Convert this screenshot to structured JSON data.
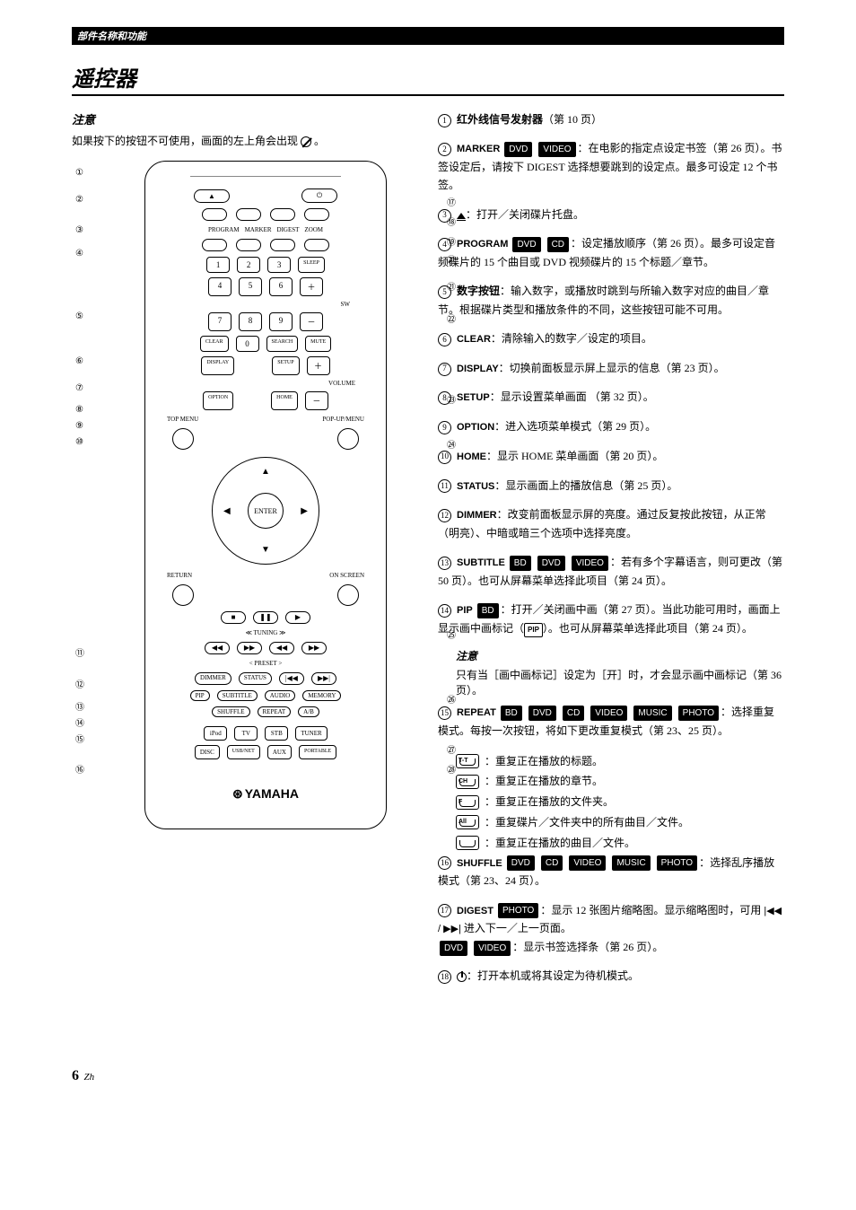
{
  "header_bar": "部件名称和功能",
  "main_title": "遥控器",
  "note_title": "注意",
  "note_text": "如果按下的按钮不可使用，画面的左上角会出现",
  "note_suffix": " 。",
  "remote": {
    "row_labels": {
      "program": "PROGRAM",
      "marker": "MARKER",
      "digest": "DIGEST",
      "zoom": "ZOOM",
      "clear": "CLEAR",
      "search": "SEARCH",
      "mute": "MUTE",
      "display": "DISPLAY",
      "setup": "SETUP",
      "option": "OPTION",
      "home": "HOME",
      "topmenu": "TOP MENU",
      "popup": "POP-UP/MENU",
      "return": "RETURN",
      "onscreen": "ON SCREEN",
      "enter": "ENTER",
      "tuning": "≪ TUNING ≫",
      "preset": "< PRESET >",
      "dimmer": "DIMMER",
      "status": "STATUS",
      "pip": "PIP",
      "subtitle": "SUBTITLE",
      "audio": "AUDIO",
      "memory": "MEMORY",
      "shuffle": "SHUFFLE",
      "repeat": "REPEAT",
      "ab": "A/B",
      "ipod": "iPod",
      "tv": "TV",
      "stb": "STB",
      "tuner": "TUNER",
      "disc": "DISC",
      "usbnet": "USB/NET",
      "aux": "AUX",
      "portable": "PORTABLE",
      "sleep": "SLEEP",
      "sw": "SW",
      "volume": "VOLUME"
    },
    "numbers": [
      "1",
      "2",
      "3",
      "4",
      "5",
      "6",
      "7",
      "8",
      "9",
      "0"
    ],
    "brand": "YAMAHA",
    "left_callouts": [
      "①",
      "②",
      "③",
      "④",
      "⑤",
      "⑥",
      "⑦",
      "⑧",
      "⑨",
      "⑩",
      "⑪",
      "⑫",
      "⑬",
      "⑭",
      "⑮",
      "⑯"
    ],
    "right_callouts": [
      "⑰",
      "⑱",
      "⑲",
      "⑳",
      "㉑",
      "㉒",
      "㉓",
      "㉔",
      "㉕",
      "㉖",
      "㉗",
      "㉘"
    ]
  },
  "desc": [
    {
      "n": "①",
      "term": "红外线信号发射器",
      "body": "（第 10 页）",
      "bold": true
    },
    {
      "n": "②",
      "term": "MARKER",
      "badges": [
        "DVD",
        "VIDEO"
      ],
      "body": "：在电影的指定点设定书签（第 26 页）。书签设定后，请按下 DIGEST 选择想要跳到的设定点。最多可设定 12 个书签。"
    },
    {
      "n": "③",
      "eject": true,
      "body": "：打开／关闭碟片托盘。"
    },
    {
      "n": "④",
      "term": "PROGRAM",
      "badges": [
        "DVD",
        "CD"
      ],
      "body": "：设定播放顺序（第 26 页）。最多可设定音频碟片的 15 个曲目或 DVD 视频碟片的 15 个标题／章节。"
    },
    {
      "n": "⑤",
      "term": "数字按钮",
      "body": "：输入数字，或播放时跳到与所输入数字对应的曲目／章节。根据碟片类型和播放条件的不同，这些按钮可能不可用。",
      "bold": true
    },
    {
      "n": "⑥",
      "term": "CLEAR",
      "body": "：清除输入的数字／设定的项目。"
    },
    {
      "n": "⑦",
      "term": "DISPLAY",
      "body": "：切换前面板显示屏上显示的信息（第 23 页）。"
    },
    {
      "n": "⑧",
      "term": "SETUP",
      "body": "：显示设置菜单画面 （第 32 页）。"
    },
    {
      "n": "⑨",
      "term": "OPTION",
      "body": "：进入选项菜单模式（第 29 页）。"
    },
    {
      "n": "⑩",
      "term": "HOME",
      "body": "：显示 HOME 菜单画面（第 20 页）。"
    },
    {
      "n": "⑪",
      "term": "STATUS",
      "body": "：显示画面上的播放信息（第 25 页）。"
    },
    {
      "n": "⑫",
      "term": "DIMMER",
      "body": "：改变前面板显示屏的亮度。通过反复按此按钮，从正常（明亮）、中暗或暗三个选项中选择亮度。"
    },
    {
      "n": "⑬",
      "term": "SUBTITLE",
      "badges": [
        "BD",
        "DVD",
        "VIDEO"
      ],
      "body": "：若有多个字幕语言，则可更改（第 50 页）。也可从屏幕菜单选择此项目（第 24 页）。"
    },
    {
      "n": "⑭",
      "term": "PIP",
      "badges": [
        "BD"
      ],
      "body": "：打开／关闭画中画（第 27 页）。当此功能可用时，画面上显示画中画标记（",
      "pip_suffix": "）。也可从屏幕菜单选择此项目（第 24 页）。"
    }
  ],
  "pip_note_title": "注意",
  "pip_note": "只有当［画中画标记］设定为［开］时，才会显示画中画标记（第 36 页）。",
  "item15": {
    "n": "⑮",
    "term": "REPEAT",
    "badges": [
      "BD",
      "DVD",
      "CD",
      "VIDEO",
      "MUSIC",
      "PHOTO"
    ],
    "body": "：选择重复模式。每按一次按钮，将如下更改重复模式（第 23、25 页）。",
    "lines": [
      {
        "tag": "T-T",
        "txt": "：重复正在播放的标题。"
      },
      {
        "tag": "CH",
        "txt": "：重复正在播放的章节。"
      },
      {
        "tag": "F",
        "txt": "：重复正在播放的文件夹。"
      },
      {
        "tag": "All",
        "txt": "：重复碟片／文件夹中的所有曲目／文件。"
      },
      {
        "tag": "",
        "txt": "：重复正在播放的曲目／文件。"
      }
    ]
  },
  "item16": {
    "n": "⑯",
    "term": "SHUFFLE",
    "badges": [
      "DVD",
      "CD",
      "VIDEO",
      "MUSIC",
      "PHOTO"
    ],
    "body": "：选择乱序播放模式（第 23、24 页）。"
  },
  "item17": {
    "n": "⑰",
    "term": "DIGEST",
    "badges": [
      "PHOTO"
    ],
    "body": "：显示 12 张图片缩略图。显示缩略图时，可用 ",
    "body2": " 进入下一／上一页面。",
    "line2_badges": [
      "DVD",
      "VIDEO"
    ],
    "line2": "：显示书签选择条（第 26 页）。"
  },
  "item18": {
    "n": "⑱",
    "body": "：打开本机或将其设定为待机模式。"
  },
  "footer": {
    "page": "6",
    "lang": "Zh"
  }
}
